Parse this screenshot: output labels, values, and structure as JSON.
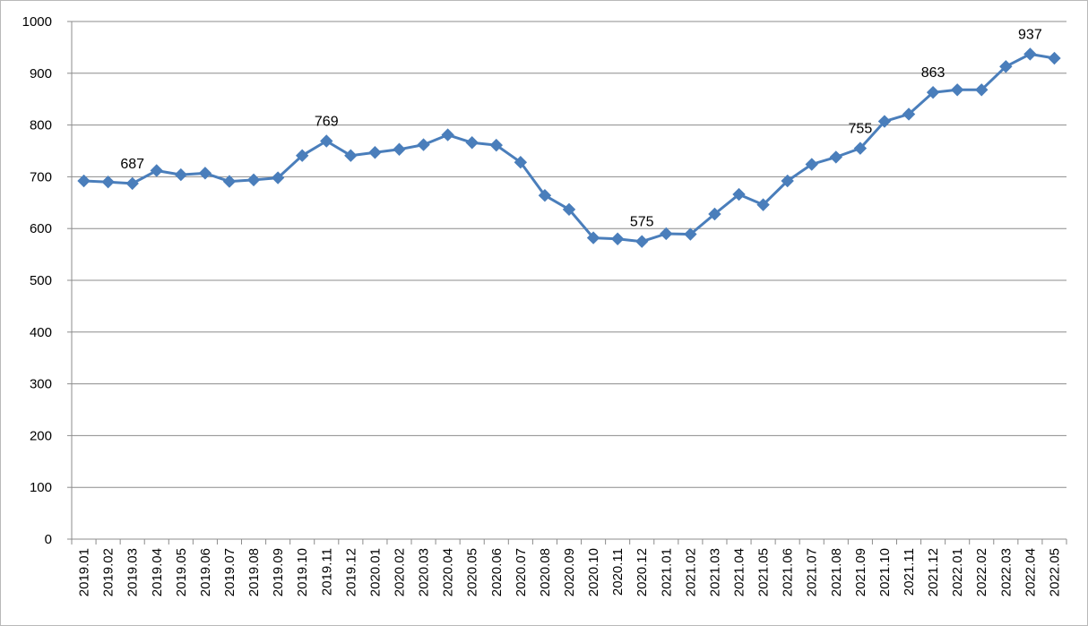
{
  "chart_data": {
    "type": "line",
    "title": "",
    "xlabel": "",
    "ylabel": "",
    "ylim": [
      0,
      1000
    ],
    "yticks": [
      0,
      100,
      200,
      300,
      400,
      500,
      600,
      700,
      800,
      900,
      1000
    ],
    "grid": true,
    "legend": "none",
    "categories": [
      "2019.01",
      "2019.02",
      "2019.03",
      "2019.04",
      "2019.05",
      "2019.06",
      "2019.07",
      "2019.08",
      "2019.09",
      "2019.10",
      "2019.11",
      "2019.12",
      "2020.01",
      "2020.02",
      "2020.03",
      "2020.04",
      "2020.05",
      "2020.06",
      "2020.07",
      "2020.08",
      "2020.09",
      "2020.10",
      "2020.11",
      "2020.12",
      "2021.01",
      "2021.02",
      "2021.03",
      "2021.04",
      "2021.05",
      "2021.06",
      "2021.07",
      "2021.08",
      "2021.09",
      "2021.10",
      "2021.11",
      "2021.12",
      "2022.01",
      "2022.02",
      "2022.03",
      "2022.04",
      "2022.05"
    ],
    "series": [
      {
        "color": "#4a7ebb",
        "marker": "diamond",
        "values": [
          692,
          690,
          687,
          712,
          704,
          707,
          691,
          694,
          698,
          741,
          769,
          741,
          747,
          753,
          762,
          781,
          766,
          761,
          728,
          664,
          637,
          582,
          580,
          575,
          590,
          589,
          628,
          666,
          646,
          692,
          724,
          738,
          755,
          807,
          821,
          863,
          868,
          868,
          913,
          937,
          929
        ]
      }
    ],
    "data_labels": [
      {
        "index": 2,
        "text": "687"
      },
      {
        "index": 10,
        "text": "769"
      },
      {
        "index": 23,
        "text": "575"
      },
      {
        "index": 32,
        "text": "755"
      },
      {
        "index": 35,
        "text": "863"
      },
      {
        "index": 39,
        "text": "937"
      }
    ]
  }
}
